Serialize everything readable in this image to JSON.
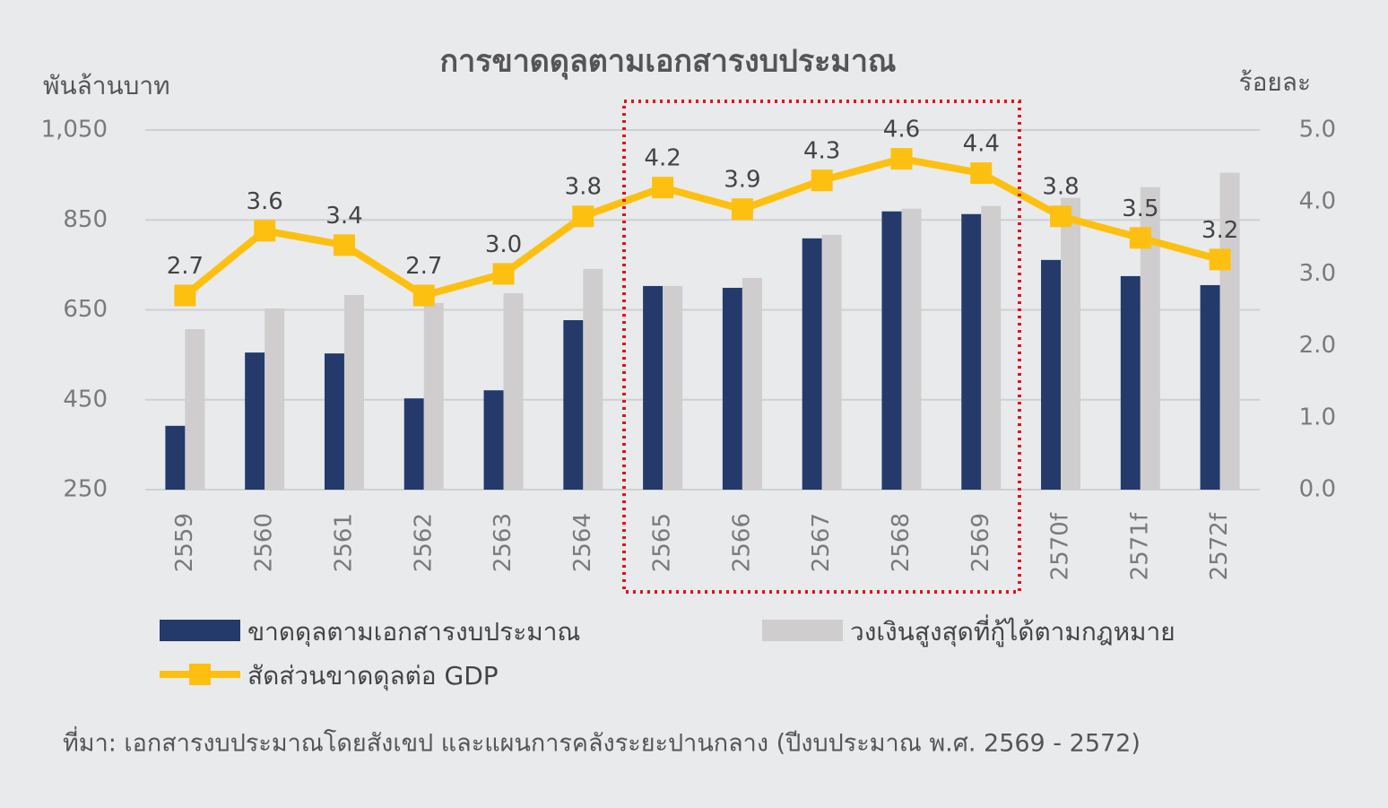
{
  "chart_data": {
    "type": "bar",
    "title": "การขาดดุลตามเอกสารงบประมาณ",
    "y_label": "พันล้านบาท",
    "y2_label": "ร้อยละ",
    "source": "ที่มา: เอกสารงบประมาณโดยสังเขป และแผนการคลังระยะปานกลาง (ปีงบประมาณ พ.ศ. 2569 - 2572)",
    "categories": [
      "2559",
      "2560",
      "2561",
      "2562",
      "2563",
      "2564",
      "2565",
      "2566",
      "2567",
      "2568",
      "2569",
      "2570f",
      "2571f",
      "2572f"
    ],
    "series": [
      {
        "name": "ขาดดุลตามเอกสารงบประมาณ",
        "color": "#243a6b",
        "values": [
          392,
          555,
          553,
          453,
          471,
          627,
          703,
          699,
          809,
          869,
          863,
          761,
          725,
          705
        ]
      },
      {
        "name": "วงเงินสูงสุดที่กู้ได้ตามกฎหมาย",
        "color": "#cfcdce",
        "values": [
          607,
          653,
          683,
          665,
          687,
          741,
          703,
          721,
          817,
          875,
          881,
          899,
          923,
          955
        ]
      },
      {
        "name": "สัดส่วนขาดดุลต่อ GDP",
        "color": "#fdc010",
        "type": "line",
        "axis": "y2",
        "values": [
          2.7,
          3.6,
          3.4,
          2.7,
          3.0,
          3.8,
          4.2,
          3.9,
          4.3,
          4.6,
          4.4,
          3.8,
          3.5,
          3.2
        ],
        "value_labels": [
          "2.7",
          "3.6",
          "3.4",
          "2.7",
          "3.0",
          "3.8",
          "4.2",
          "3.9",
          "4.3",
          "4.6",
          "4.4",
          "3.8",
          "3.5",
          "3.2"
        ]
      }
    ],
    "ylim": [
      250,
      1050
    ],
    "yticks": [
      250,
      450,
      650,
      850,
      {
        "value": 1050,
        "label": "1,050"
      }
    ],
    "y2lim": [
      0,
      5
    ],
    "y2ticks": [
      {
        "value": 0,
        "label": "0.0"
      },
      {
        "value": 1,
        "label": "1.0"
      },
      {
        "value": 2,
        "label": "2.0"
      },
      {
        "value": 3,
        "label": "3.0"
      },
      {
        "value": 4,
        "label": "4.0"
      },
      {
        "value": 5,
        "label": "5.0"
      }
    ],
    "grid": true
  }
}
